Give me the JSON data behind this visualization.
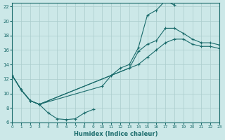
{
  "bg_color": "#cce8e8",
  "grid_color": "#aacccc",
  "line_color": "#1a6b6b",
  "xlabel": "Humidex (Indice chaleur)",
  "xlim": [
    0,
    23
  ],
  "ylim": [
    6,
    22.5
  ],
  "xtick_labels": [
    "0",
    "1",
    "2",
    "3",
    "4",
    "5",
    "6",
    "7",
    "8",
    "9",
    "10",
    "11",
    "12",
    "13",
    "14",
    "15",
    "16",
    "17",
    "18",
    "19",
    "20",
    "21",
    "22",
    "23"
  ],
  "ytick_vals": [
    6,
    8,
    10,
    12,
    14,
    16,
    18,
    20,
    22
  ],
  "curve_bottom_x": [
    0,
    1,
    2,
    3,
    4,
    5,
    6,
    7,
    8,
    9
  ],
  "curve_bottom_y": [
    12.5,
    10.5,
    9.0,
    8.5,
    7.3,
    6.5,
    6.4,
    6.5,
    7.3,
    7.8
  ],
  "curve_top_x": [
    0,
    1,
    2,
    3,
    10,
    11,
    12,
    13,
    14,
    15,
    16,
    17,
    18
  ],
  "curve_top_y": [
    12.5,
    10.5,
    9.0,
    8.5,
    11.0,
    12.5,
    13.5,
    14.0,
    16.3,
    20.8,
    21.5,
    22.8,
    22.2
  ],
  "curve_mid1_x": [
    0,
    1,
    2,
    3,
    13,
    14,
    15,
    16,
    17,
    18,
    19,
    20,
    21,
    22,
    23
  ],
  "curve_mid1_y": [
    12.5,
    10.5,
    9.0,
    8.5,
    13.5,
    15.8,
    16.8,
    17.3,
    19.0,
    19.0,
    18.3,
    17.5,
    17.0,
    17.0,
    16.7
  ],
  "curve_mid2_x": [
    0,
    1,
    2,
    3,
    14,
    15,
    16,
    17,
    18,
    19,
    20,
    21,
    22,
    23
  ],
  "curve_mid2_y": [
    12.5,
    10.5,
    9.0,
    8.5,
    14.0,
    15.0,
    16.0,
    17.0,
    17.5,
    17.5,
    16.8,
    16.5,
    16.5,
    16.2
  ]
}
